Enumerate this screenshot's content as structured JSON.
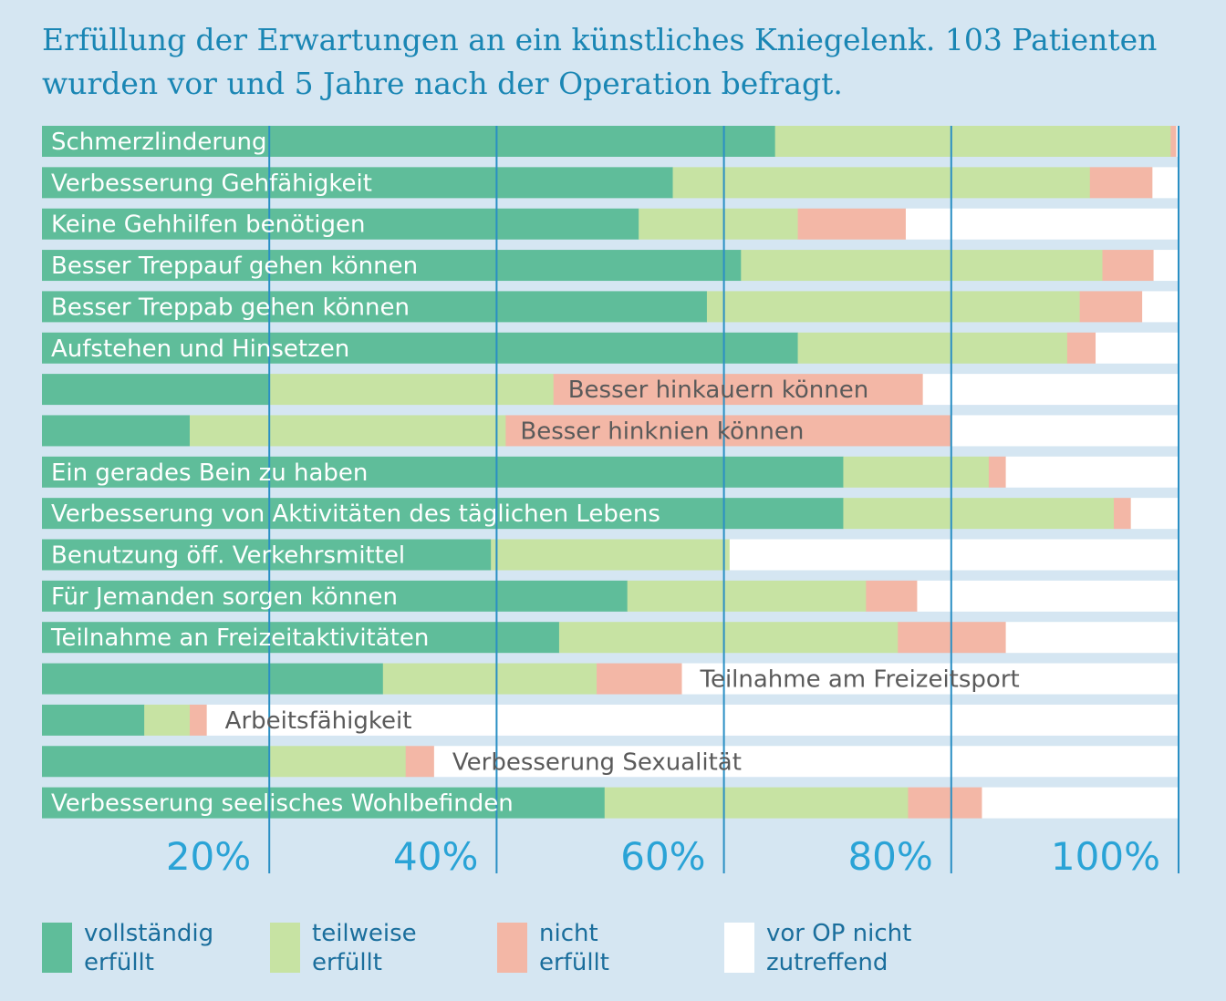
{
  "chart_data": {
    "type": "bar",
    "orientation": "horizontal",
    "stacked": true,
    "title": "Erfüllung der Erwartungen an ein künstliches Kniegelenk. 103 Patienten wurden vor und 5 Jahre nach der Operation befragt.",
    "categories": [
      "Schmerzlinderung",
      "Verbesserung Gehfähigkeit",
      "Keine Gehhilfen benötigen",
      "Besser Treppauf gehen können",
      "Besser Treppab gehen können",
      "Aufstehen und Hinsetzen",
      "Besser hinkauern können",
      "Besser hinknien können",
      "Ein gerades Bein zu haben",
      "Verbesserung von Aktivitäten des täglichen Lebens",
      "Benutzung öff. Verkehrsmittel",
      "Für Jemanden sorgen können",
      "Teilnahme an Freizeitaktivitäten",
      "Teilnahme am Freizeitsport",
      "Arbeitsfähigkeit",
      "Verbesserung Sexualität",
      "Verbesserung seelisches Wohlbefinden"
    ],
    "series": [
      {
        "name": "vollständig erfüllt",
        "color": "#5fbd9a",
        "values": [
          64.5,
          55.5,
          52.5,
          61.5,
          58.5,
          66.5,
          20,
          13,
          70.5,
          70.5,
          39.5,
          51.5,
          45.5,
          30,
          9,
          20,
          49.5
        ]
      },
      {
        "name": "teilweise erfüllt",
        "color": "#c7e3a3",
        "values": [
          34.8,
          36.7,
          14,
          31.8,
          32.8,
          23.7,
          25,
          27.8,
          12.8,
          23.8,
          21,
          21,
          29.8,
          18.8,
          4,
          12,
          26.7
        ]
      },
      {
        "name": "nicht erfüllt",
        "color": "#f3b7a6",
        "values": [
          0.5,
          5.5,
          9.5,
          4.5,
          5.5,
          2.5,
          32.5,
          39.2,
          1.5,
          1.5,
          0,
          4.5,
          9.5,
          7.5,
          1.5,
          2.5,
          6.5
        ]
      },
      {
        "name": "vor OP nicht zutreffend",
        "color": "#ffffff",
        "values": [
          0.2,
          2.3,
          24,
          2.2,
          3.2,
          7.3,
          22.5,
          20,
          15.2,
          4.2,
          39.5,
          23,
          15.2,
          43.7,
          85.5,
          65.5,
          17.3
        ]
      }
    ],
    "xlim": [
      0,
      100
    ],
    "x_ticks": [
      "20%",
      "40%",
      "60%",
      "80%",
      "100%"
    ],
    "x_tick_values": [
      20,
      40,
      60,
      80,
      100
    ],
    "grid": true,
    "legend": "bottom"
  },
  "legend": {
    "items": [
      {
        "label_line1": "vollständig",
        "label_line2": "erfüllt",
        "color": "#5fbd9a"
      },
      {
        "label_line1": "teilweise",
        "label_line2": "erfüllt",
        "color": "#c7e3a3"
      },
      {
        "label_line1": "nicht",
        "label_line2": "erfüllt",
        "color": "#f3b7a6"
      },
      {
        "label_line1": "vor OP nicht",
        "label_line2": "zutreffend",
        "color": "#ffffff"
      }
    ]
  }
}
